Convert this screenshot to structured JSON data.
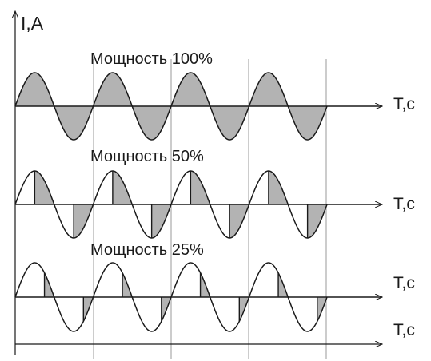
{
  "y_axis_label": "I,A",
  "panels": [
    {
      "title": "Мощность 100%",
      "x_axis_label": "T,c",
      "power_percent": 100
    },
    {
      "title": "Мощность 50%",
      "x_axis_label": "T,c",
      "power_percent": 50
    },
    {
      "title": "Мощность 25%",
      "x_axis_label": "T,c",
      "power_percent": 25
    }
  ],
  "bottom_axis_label": "T,c",
  "colors": {
    "line": "#1a1a1a",
    "fill": "#b3b3b3",
    "grid": "#9a9a9a"
  }
}
